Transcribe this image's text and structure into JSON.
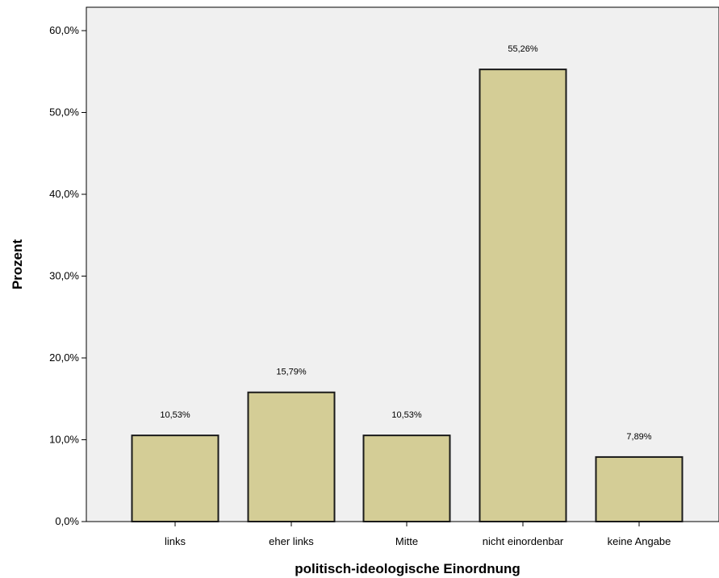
{
  "chart_data": {
    "type": "bar",
    "title": "",
    "xlabel": "politisch-ideologische Einordnung",
    "ylabel": "Prozent",
    "categories": [
      "links",
      "eher links",
      "Mitte",
      "nicht einordenbar",
      "keine Angabe"
    ],
    "values": [
      10.53,
      15.79,
      10.53,
      55.26,
      7.89
    ],
    "value_labels": [
      "10,53%",
      "15,79%",
      "10,53%",
      "55,26%",
      "7,89%"
    ],
    "ylim": [
      0,
      60
    ],
    "yticks": [
      0,
      10,
      20,
      30,
      40,
      50,
      60
    ],
    "ytick_labels": [
      "0,0%",
      "10,0%",
      "20,0%",
      "30,0%",
      "40,0%",
      "50,0%",
      "60,0%"
    ],
    "grid": false,
    "legend": "none",
    "colors": {
      "bar_fill": "#d4cd96",
      "bar_stroke": "#1a1a1a",
      "plot_background": "#f0f0f0",
      "axis": "#000000"
    }
  }
}
